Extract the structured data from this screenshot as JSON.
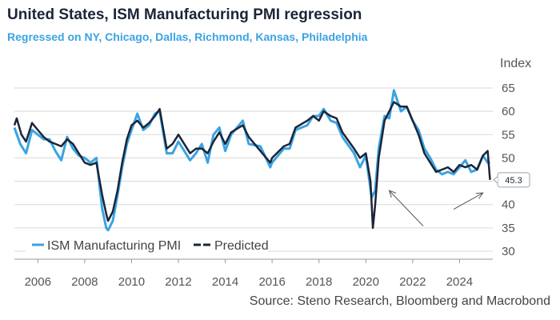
{
  "chart_data": {
    "type": "line",
    "title": "United States, ISM Manufacturing PMI regression",
    "subtitle": "Regressed on NY, Chicago, Dallas, Richmond, Kansas, Philadelphia",
    "ylabel": "Index",
    "source": "Source: Steno Research, Bloomberg and Macrobond",
    "ylim": [
      30,
      65
    ],
    "yticks": [
      30,
      35,
      40,
      45,
      50,
      55,
      60,
      65
    ],
    "xlim": [
      2005.0,
      2025.42
    ],
    "xticks": [
      2006,
      2008,
      2010,
      2012,
      2014,
      2016,
      2018,
      2020,
      2022,
      2024
    ],
    "xtick_labels": [
      "2006",
      "2008",
      "2010",
      "2012",
      "2014",
      "2016",
      "2018",
      "2020",
      "2022",
      "2024"
    ],
    "last_value_label": "45.3",
    "colors": {
      "actual": "#3ba3e2",
      "predicted": "#1b2538",
      "grid": "#d9d9d9"
    },
    "series": [
      {
        "name": "ISM Manufacturing PMI",
        "points": [
          [
            2005.0,
            56.5
          ],
          [
            2005.25,
            53
          ],
          [
            2005.5,
            51
          ],
          [
            2005.75,
            56
          ],
          [
            2006.0,
            55
          ],
          [
            2006.25,
            54
          ],
          [
            2006.5,
            54
          ],
          [
            2006.75,
            51.5
          ],
          [
            2007.0,
            49.5
          ],
          [
            2007.25,
            54.5
          ],
          [
            2007.5,
            52
          ],
          [
            2007.75,
            50.5
          ],
          [
            2008.0,
            50
          ],
          [
            2008.25,
            49
          ],
          [
            2008.5,
            50
          ],
          [
            2008.75,
            39
          ],
          [
            2008.92,
            35
          ],
          [
            2009.0,
            34.5
          ],
          [
            2009.2,
            36.5
          ],
          [
            2009.4,
            42
          ],
          [
            2009.6,
            48
          ],
          [
            2009.8,
            53
          ],
          [
            2010.0,
            56
          ],
          [
            2010.25,
            59.5
          ],
          [
            2010.5,
            56
          ],
          [
            2010.75,
            57
          ],
          [
            2011.0,
            59.5
          ],
          [
            2011.2,
            60
          ],
          [
            2011.5,
            51
          ],
          [
            2011.75,
            51
          ],
          [
            2012.0,
            53.5
          ],
          [
            2012.5,
            49.5
          ],
          [
            2012.75,
            51
          ],
          [
            2013.0,
            53
          ],
          [
            2013.25,
            49
          ],
          [
            2013.5,
            55
          ],
          [
            2013.75,
            56.5
          ],
          [
            2014.0,
            51.5
          ],
          [
            2014.25,
            55
          ],
          [
            2014.75,
            58
          ],
          [
            2015.0,
            53
          ],
          [
            2015.5,
            52.5
          ],
          [
            2015.92,
            48
          ],
          [
            2016.0,
            49
          ],
          [
            2016.5,
            52
          ],
          [
            2016.75,
            52
          ],
          [
            2017.0,
            56
          ],
          [
            2017.5,
            57
          ],
          [
            2017.75,
            59
          ],
          [
            2018.0,
            59
          ],
          [
            2018.2,
            60.5
          ],
          [
            2018.5,
            58
          ],
          [
            2018.75,
            57.5
          ],
          [
            2019.0,
            54.5
          ],
          [
            2019.5,
            51
          ],
          [
            2019.75,
            48
          ],
          [
            2020.0,
            50.5
          ],
          [
            2020.25,
            41.5
          ],
          [
            2020.4,
            43
          ],
          [
            2020.55,
            52
          ],
          [
            2020.8,
            59
          ],
          [
            2021.0,
            58.5
          ],
          [
            2021.2,
            64.5
          ],
          [
            2021.5,
            60
          ],
          [
            2021.75,
            61
          ],
          [
            2022.0,
            58
          ],
          [
            2022.25,
            56
          ],
          [
            2022.5,
            52
          ],
          [
            2022.75,
            50
          ],
          [
            2023.0,
            47.5
          ],
          [
            2023.25,
            46.5
          ],
          [
            2023.5,
            47
          ],
          [
            2023.75,
            46.5
          ],
          [
            2024.0,
            48
          ],
          [
            2024.25,
            49.5
          ],
          [
            2024.5,
            47
          ],
          [
            2024.75,
            47.5
          ],
          [
            2025.0,
            50.5
          ],
          [
            2025.2,
            49
          ],
          [
            2025.3,
            49
          ]
        ]
      },
      {
        "name": "Predicted",
        "points": [
          [
            2005.0,
            57
          ],
          [
            2005.1,
            58.5
          ],
          [
            2005.3,
            55
          ],
          [
            2005.5,
            53.5
          ],
          [
            2005.75,
            57.5
          ],
          [
            2006.0,
            56
          ],
          [
            2006.25,
            54.5
          ],
          [
            2006.5,
            53.5
          ],
          [
            2006.75,
            53
          ],
          [
            2007.0,
            52.5
          ],
          [
            2007.25,
            54
          ],
          [
            2007.5,
            53
          ],
          [
            2007.75,
            51
          ],
          [
            2008.0,
            49
          ],
          [
            2008.25,
            48.5
          ],
          [
            2008.5,
            49
          ],
          [
            2008.75,
            42
          ],
          [
            2008.92,
            38
          ],
          [
            2009.0,
            36.5
          ],
          [
            2009.2,
            38.5
          ],
          [
            2009.4,
            43
          ],
          [
            2009.6,
            49
          ],
          [
            2009.8,
            54
          ],
          [
            2010.0,
            57
          ],
          [
            2010.25,
            58
          ],
          [
            2010.5,
            56.5
          ],
          [
            2010.75,
            57.5
          ],
          [
            2011.0,
            59
          ],
          [
            2011.2,
            60.5
          ],
          [
            2011.5,
            52
          ],
          [
            2011.75,
            53
          ],
          [
            2012.0,
            55
          ],
          [
            2012.5,
            51
          ],
          [
            2012.75,
            52
          ],
          [
            2013.0,
            52
          ],
          [
            2013.25,
            51
          ],
          [
            2013.5,
            53.5
          ],
          [
            2013.75,
            55.5
          ],
          [
            2014.0,
            53
          ],
          [
            2014.25,
            55.5
          ],
          [
            2014.75,
            57
          ],
          [
            2015.0,
            54.5
          ],
          [
            2015.5,
            51.5
          ],
          [
            2015.92,
            49
          ],
          [
            2016.0,
            50
          ],
          [
            2016.5,
            52.5
          ],
          [
            2016.75,
            53
          ],
          [
            2017.0,
            56.5
          ],
          [
            2017.5,
            58
          ],
          [
            2017.75,
            59
          ],
          [
            2018.0,
            58
          ],
          [
            2018.2,
            60
          ],
          [
            2018.5,
            59
          ],
          [
            2018.75,
            58.5
          ],
          [
            2019.0,
            55.5
          ],
          [
            2019.5,
            52
          ],
          [
            2019.75,
            50
          ],
          [
            2020.0,
            51
          ],
          [
            2020.2,
            45
          ],
          [
            2020.3,
            35
          ],
          [
            2020.4,
            40
          ],
          [
            2020.55,
            50
          ],
          [
            2020.8,
            58
          ],
          [
            2021.0,
            60
          ],
          [
            2021.2,
            62
          ],
          [
            2021.5,
            61
          ],
          [
            2021.75,
            61
          ],
          [
            2022.0,
            58
          ],
          [
            2022.25,
            55
          ],
          [
            2022.5,
            51
          ],
          [
            2022.75,
            49
          ],
          [
            2023.0,
            47
          ],
          [
            2023.25,
            47.5
          ],
          [
            2023.5,
            48
          ],
          [
            2023.75,
            47
          ],
          [
            2024.0,
            48.5
          ],
          [
            2024.25,
            48
          ],
          [
            2024.5,
            48.5
          ],
          [
            2024.75,
            47.5
          ],
          [
            2025.0,
            50.5
          ],
          [
            2025.2,
            51.5
          ],
          [
            2025.3,
            45.3
          ]
        ]
      }
    ],
    "legend": {
      "placement": "bottom-left",
      "items": [
        {
          "label": "ISM Manufacturing PMI"
        },
        {
          "label": "Predicted"
        }
      ]
    },
    "annotations": [
      {
        "type": "arrow",
        "from": [
          2022.45,
          35.4
        ],
        "to": [
          2021.0,
          43.0
        ]
      },
      {
        "type": "arrow",
        "from": [
          2023.75,
          39.0
        ],
        "to": [
          2025.0,
          42.5
        ]
      }
    ]
  }
}
